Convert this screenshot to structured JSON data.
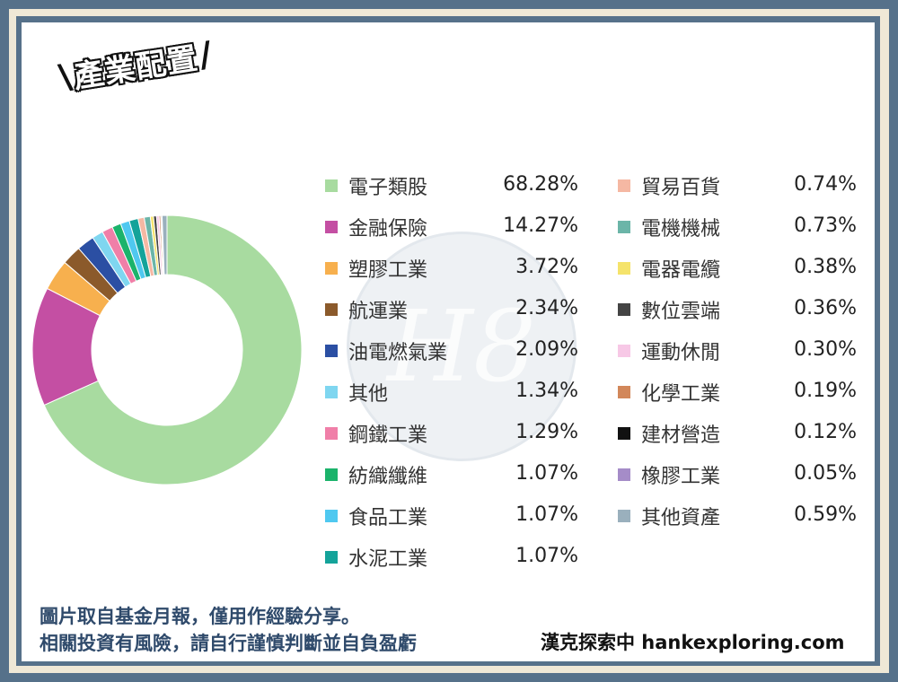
{
  "tag": {
    "title": "產業配置",
    "left_slash": "\\",
    "right_slash": "/"
  },
  "watermark": {
    "text": "H8"
  },
  "footer": {
    "line1": "圖片取自基金月報，僅用作經驗分享。",
    "line2": "相關投資有風險，請自行謹慎判斷並自負盈虧",
    "brand": "漢克探索中 hankexploring.com"
  },
  "chart_data": {
    "type": "pie",
    "style": "donut",
    "title": "",
    "legend_placement": "right",
    "labels": [
      "電子類股",
      "金融保險",
      "塑膠工業",
      "航運業",
      "油電燃氣業",
      "其他",
      "鋼鐵工業",
      "紡織纖維",
      "食品工業",
      "水泥工業",
      "貿易百貨",
      "電機機械",
      "電器電纜",
      "數位雲端",
      "運動休閒",
      "化學工業",
      "建材營造",
      "橡膠工業",
      "其他資產"
    ],
    "values": [
      68.28,
      14.27,
      3.72,
      2.34,
      2.09,
      1.34,
      1.29,
      1.07,
      1.07,
      1.07,
      0.74,
      0.73,
      0.38,
      0.36,
      0.3,
      0.19,
      0.12,
      0.05,
      0.59
    ],
    "value_labels": [
      "68.28%",
      "14.27%",
      "3.72%",
      "2.34%",
      "2.09%",
      "1.34%",
      "1.29%",
      "1.07%",
      "1.07%",
      "1.07%",
      "0.74%",
      "0.73%",
      "0.38%",
      "0.36%",
      "0.30%",
      "0.19%",
      "0.12%",
      "0.05%",
      "0.59%"
    ],
    "colors": [
      "#a8dba0",
      "#c44fa3",
      "#f7b04e",
      "#8b5a2b",
      "#2b4fa3",
      "#7fd6f0",
      "#f07fa8",
      "#1bb36b",
      "#4fc8f0",
      "#14a39a",
      "#f5b8a3",
      "#6bb5a8",
      "#f5e36b",
      "#444444",
      "#f7c8e6",
      "#d2875a",
      "#111111",
      "#a58cc8",
      "#9ab0bd"
    ]
  }
}
